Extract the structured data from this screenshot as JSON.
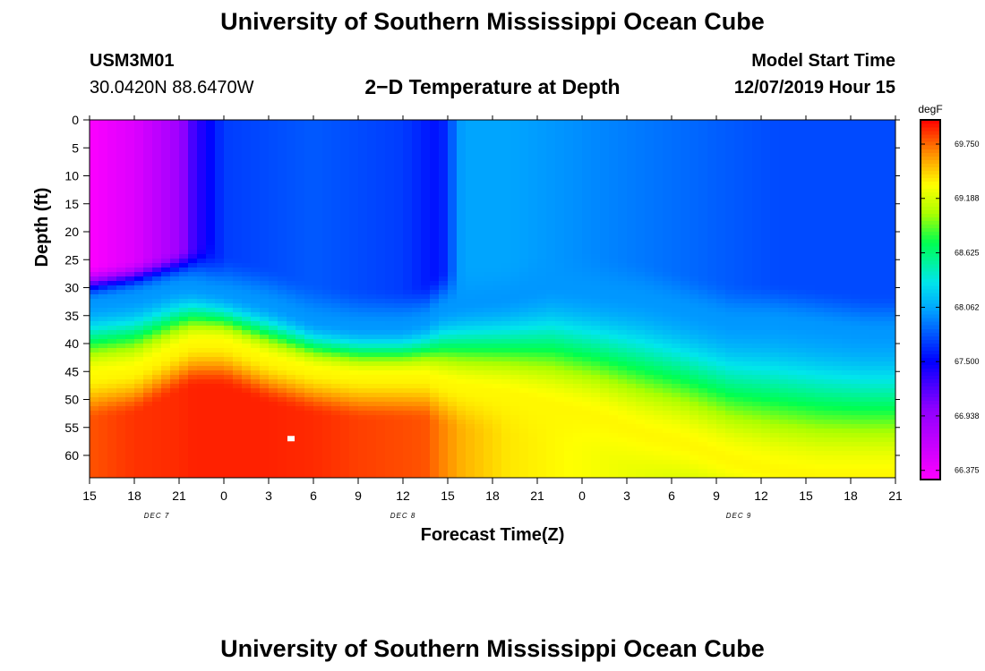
{
  "page": {
    "title": "University of Southern Mississippi Ocean Cube",
    "footer_title": "University of Southern Mississippi Ocean Cube",
    "station_id": "USM3M01",
    "location": "30.0420N 88.6470W",
    "subtitle": "2−D Temperature at Depth",
    "model_label": "Model Start Time",
    "model_time": "12/07/2019 Hour 15"
  },
  "chart_data": {
    "type": "heatmap",
    "title": "2-D Temperature at Depth",
    "xlabel": "Forecast Time(Z)",
    "ylabel": "Depth (ft)",
    "x_unit": "hours from 12/07/2019 15Z",
    "x_range": [
      0,
      54
    ],
    "y_range": [
      0,
      64
    ],
    "x_tick_labels": [
      "15",
      "18",
      "21",
      "0",
      "3",
      "6",
      "9",
      "12",
      "15",
      "18",
      "21",
      "0",
      "3",
      "6",
      "9",
      "12",
      "15",
      "18",
      "21"
    ],
    "y_ticks": [
      0,
      5,
      10,
      15,
      20,
      25,
      30,
      35,
      40,
      45,
      50,
      55,
      60
    ],
    "date_labels": [
      {
        "text": "DEC 7",
        "hour": 4.5
      },
      {
        "text": "DEC 8",
        "hour": 21
      },
      {
        "text": "DEC 9",
        "hour": 43.5
      }
    ],
    "colorbar": {
      "unit": "degF",
      "min": 66.28,
      "max": 70.0,
      "tick_values": [
        66.375,
        66.938,
        67.5,
        68.062,
        68.625,
        69.188,
        69.75
      ],
      "tick_labels": [
        "66.375",
        "66.938",
        "67.500",
        "68.062",
        "68.625",
        "69.188",
        "69.750"
      ]
    },
    "layers": {
      "hours": [
        0,
        3,
        6,
        7,
        9,
        12,
        15,
        18,
        21,
        22.5,
        23.5,
        25,
        28,
        31,
        34,
        37,
        40,
        43,
        46,
        49,
        52,
        54
      ],
      "cold_bottom_depth": [
        31,
        29,
        27,
        26,
        22,
        14,
        0,
        null,
        null,
        null,
        null,
        null,
        null,
        null,
        null,
        null,
        null,
        null,
        null,
        null,
        null,
        null
      ],
      "thermocline_top_depth": [
        33,
        32,
        30,
        30,
        31,
        33,
        36,
        37,
        37,
        36,
        34,
        33,
        32,
        30,
        31,
        32,
        34,
        36,
        36,
        37,
        38,
        38
      ],
      "thermocline_bottom_depth": [
        46,
        45,
        41,
        40,
        40,
        43,
        45,
        46,
        46,
        46,
        47,
        48,
        49,
        51,
        53,
        56,
        58,
        61,
        63,
        64,
        64,
        64
      ],
      "surface_temp_degF": [
        66.3,
        66.5,
        66.9,
        67.3,
        67.7,
        67.75,
        67.8,
        67.75,
        67.7,
        67.6,
        67.55,
        68.05,
        68.05,
        68.0,
        67.95,
        67.9,
        67.85,
        67.8,
        67.75,
        67.75,
        67.75,
        67.75
      ],
      "bottom_temp_degF": [
        69.8,
        69.88,
        69.9,
        69.92,
        69.92,
        69.92,
        69.9,
        69.85,
        69.82,
        69.8,
        69.7,
        69.55,
        69.4,
        69.35,
        69.3,
        69.25,
        69.2,
        69.15,
        69.1,
        69.05,
        69.0,
        69.0
      ]
    },
    "marker": {
      "hour": 13.5,
      "depth": 57,
      "color": "#ffffff"
    }
  }
}
